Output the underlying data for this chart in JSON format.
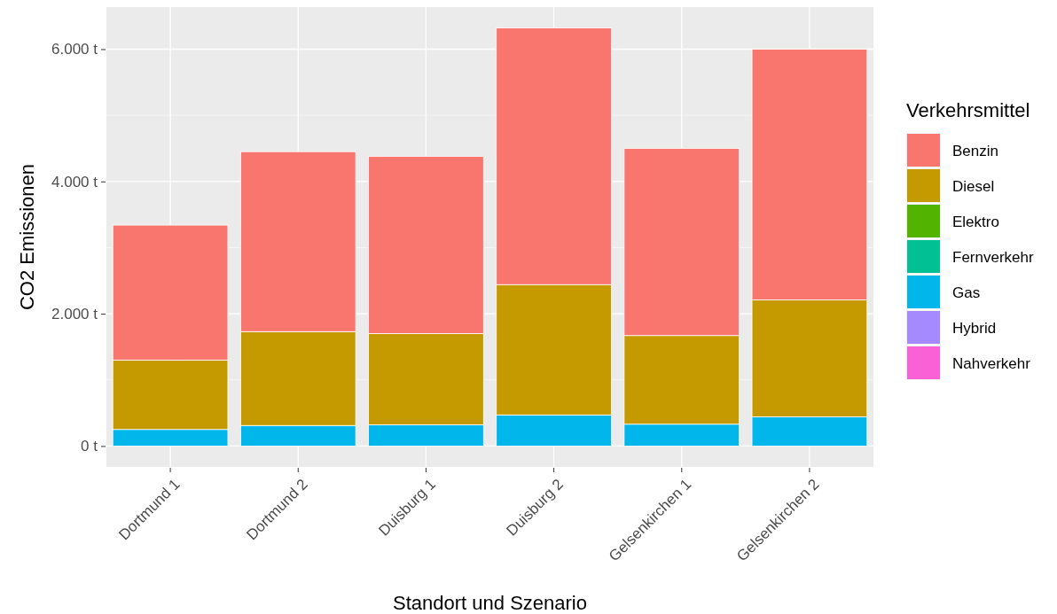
{
  "chart_data": {
    "type": "bar",
    "stacked": true,
    "xlabel": "Standort und Szenario",
    "ylabel": "CO2 Emissionen",
    "legend_title": "Verkehrsmittel",
    "legend": "right",
    "grid": true,
    "categories": [
      "Dortmund 1",
      "Dortmund 2",
      "Duisburg 1",
      "Duisburg 2",
      "Gelsenkirchen 1",
      "Gelsenkirchen 2"
    ],
    "ylim": [
      -316,
      6636
    ],
    "yticks": [
      {
        "value": 0,
        "label": "0 t"
      },
      {
        "value": 2000,
        "label": "2.000 t"
      },
      {
        "value": 4000,
        "label": "4.000 t"
      },
      {
        "value": 6000,
        "label": "6.000 t"
      }
    ],
    "series": [
      {
        "name": "Nahverkehr",
        "color": "#fb61d7",
        "values": [
          0,
          0,
          0,
          0,
          0,
          0
        ]
      },
      {
        "name": "Hybrid",
        "color": "#a58aff",
        "values": [
          0,
          0,
          0,
          0,
          0,
          0
        ]
      },
      {
        "name": "Gas",
        "color": "#00b6eb",
        "values": [
          250,
          310,
          320,
          470,
          330,
          440
        ]
      },
      {
        "name": "Fernverkehr",
        "color": "#00c094",
        "values": [
          0,
          0,
          0,
          0,
          0,
          0
        ]
      },
      {
        "name": "Elektro",
        "color": "#53b400",
        "values": [
          0,
          0,
          0,
          0,
          0,
          0
        ]
      },
      {
        "name": "Diesel",
        "color": "#c49a00",
        "values": [
          1050,
          1420,
          1380,
          1970,
          1340,
          1770
        ]
      },
      {
        "name": "Benzin",
        "color": "#f8766d",
        "values": [
          2040,
          2720,
          2680,
          3880,
          2830,
          3790
        ]
      }
    ]
  }
}
